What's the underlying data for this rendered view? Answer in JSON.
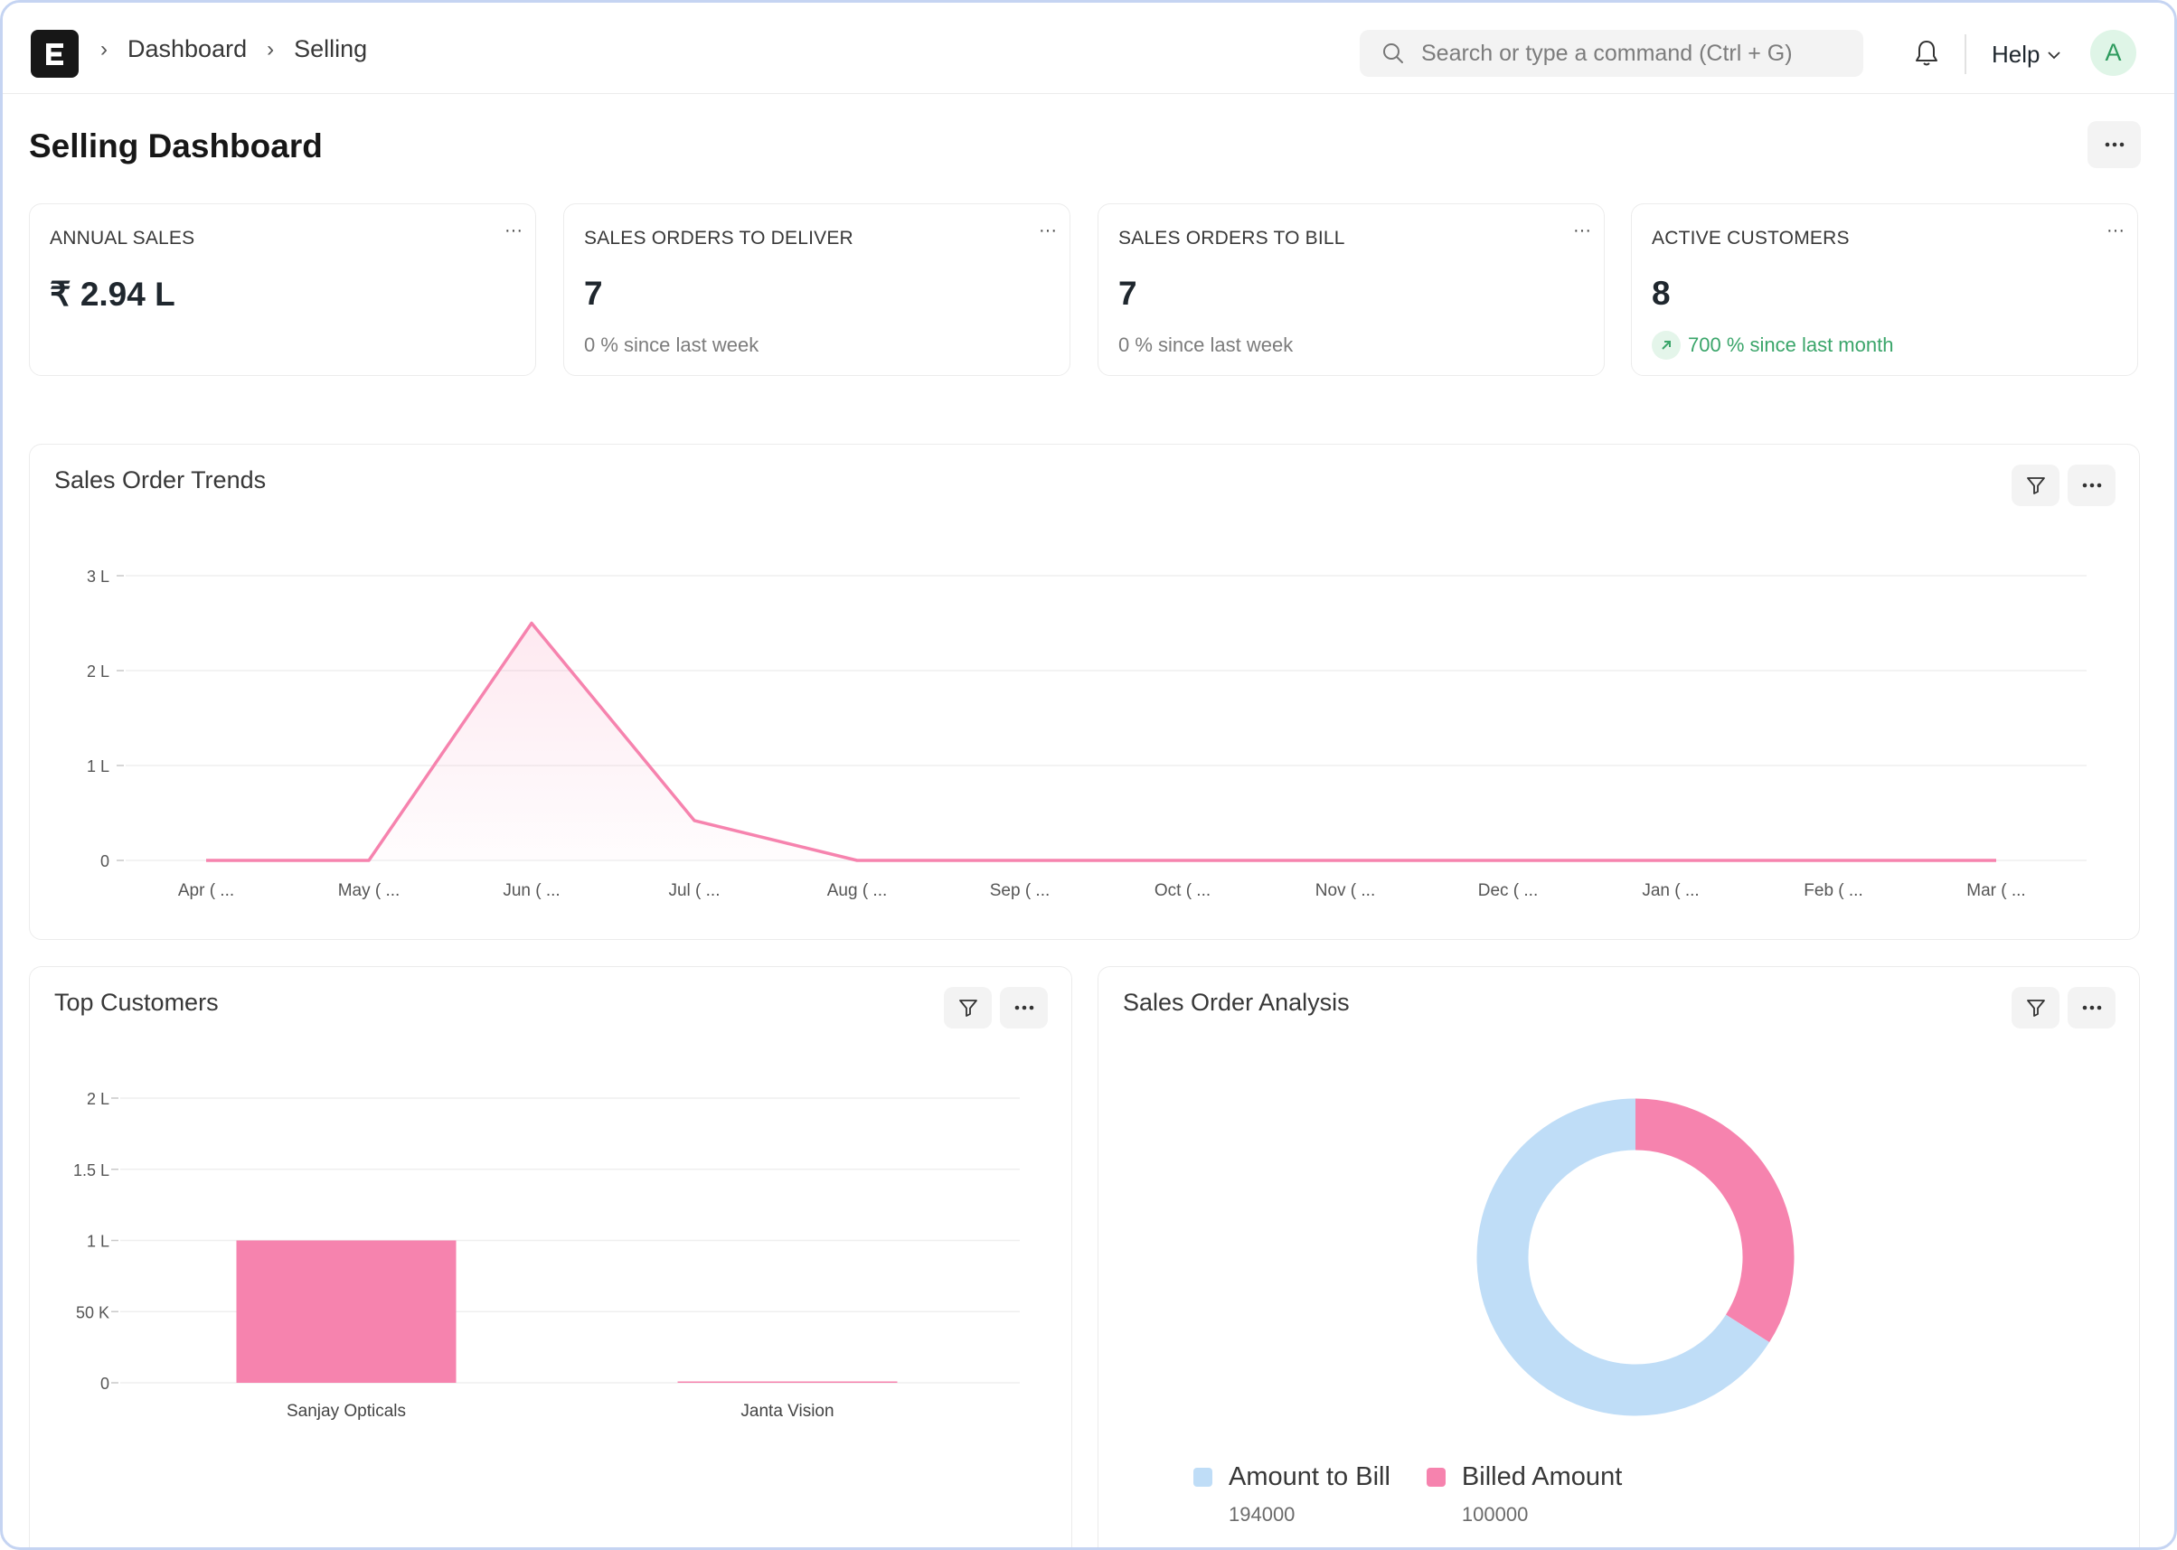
{
  "navbar": {
    "breadcrumbs": [
      "Dashboard",
      "Selling"
    ],
    "search_placeholder": "Search or type a command (Ctrl + G)",
    "help_label": "Help",
    "avatar_initial": "A"
  },
  "page": {
    "title": "Selling Dashboard"
  },
  "cards": [
    {
      "label": "ANNUAL SALES",
      "value": "₹ 2.94 L",
      "sub": ""
    },
    {
      "label": "SALES ORDERS TO DELIVER",
      "value": "7",
      "sub": "0 % since last week"
    },
    {
      "label": "SALES ORDERS TO BILL",
      "value": "7",
      "sub": "0 % since last week"
    },
    {
      "label": "ACTIVE CUSTOMERS",
      "value": "8",
      "sub": "700 % since last month"
    }
  ],
  "menu_glyph": "···",
  "colors": {
    "pink": "#f683ae",
    "light_blue": "#bfddf7",
    "positive": "#3aa56a"
  },
  "chart_data": [
    {
      "type": "line",
      "title": "Sales Order Trends",
      "categories": [
        "Apr ( ...",
        "May ( ...",
        "Jun ( ...",
        "Jul ( ...",
        "Aug ( ...",
        "Sep ( ...",
        "Oct ( ...",
        "Nov ( ...",
        "Dec ( ...",
        "Jan ( ...",
        "Feb ( ...",
        "Mar ( ..."
      ],
      "values": [
        0,
        0,
        250000,
        42000,
        0,
        0,
        0,
        0,
        0,
        0,
        0,
        0
      ],
      "yticks": [
        0,
        100000,
        200000,
        300000
      ],
      "ytick_labels": [
        "0",
        "1 L",
        "2 L",
        "3 L"
      ],
      "ylim": [
        0,
        300000
      ],
      "grid": true
    },
    {
      "type": "bar",
      "title": "Top Customers",
      "categories": [
        "Sanjay Opticals",
        "Janta Vision"
      ],
      "values": [
        100000,
        0
      ],
      "yticks": [
        0,
        50000,
        100000,
        150000,
        200000
      ],
      "ytick_labels": [
        "0",
        "50 K",
        "1 L",
        "1.5 L",
        "2 L"
      ],
      "ylim": [
        0,
        200000
      ],
      "grid": true
    },
    {
      "type": "pie",
      "title": "Sales Order Analysis",
      "labels": [
        "Amount to Bill",
        "Billed Amount"
      ],
      "values": [
        194000,
        100000
      ],
      "value_labels": [
        "194000",
        "100000"
      ],
      "legend": "bottom"
    }
  ]
}
